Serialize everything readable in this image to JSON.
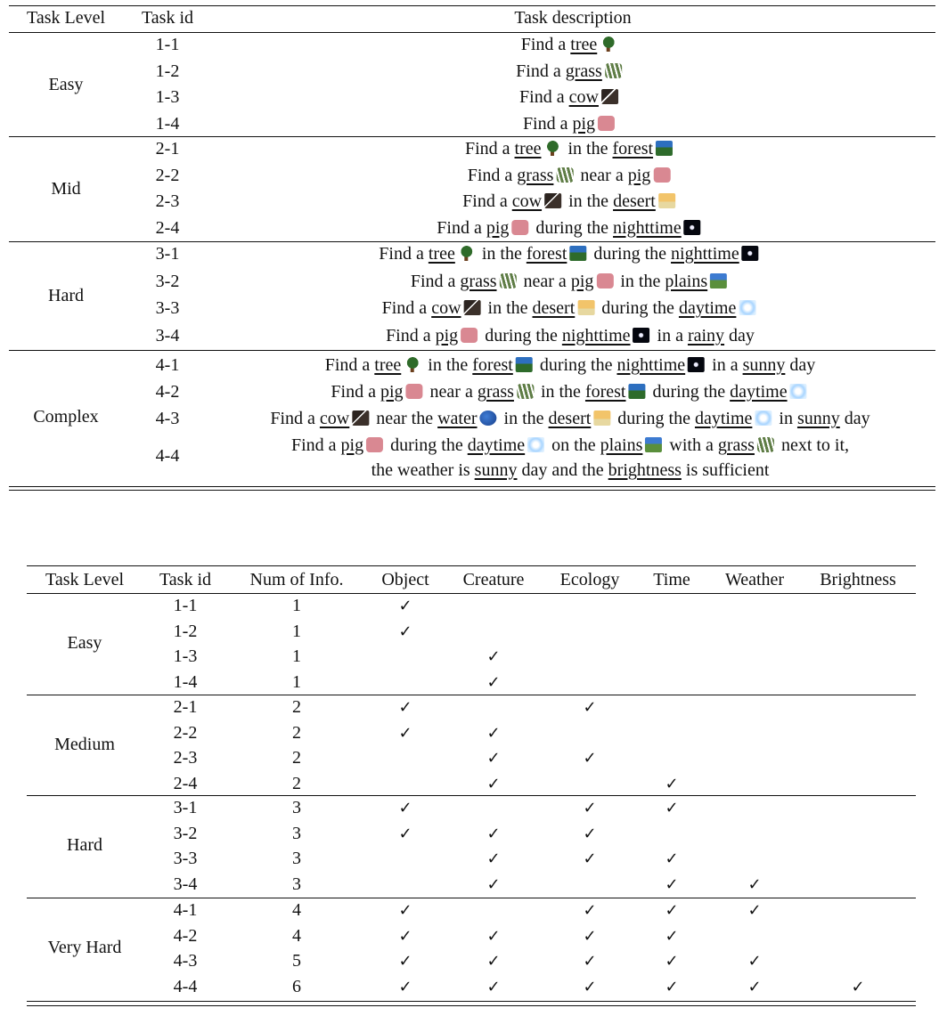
{
  "table1": {
    "headers": [
      "Task Level",
      "Task id",
      "Task description"
    ],
    "groups": [
      {
        "level": "Easy",
        "rows": [
          {
            "id": "1-1",
            "desc": [
              {
                "t": "Find a "
              },
              {
                "u": "tree"
              },
              {
                "icon": "tree-icon"
              }
            ]
          },
          {
            "id": "1-2",
            "desc": [
              {
                "t": "Find a "
              },
              {
                "u": "grass"
              },
              {
                "icon": "grass-icon"
              }
            ]
          },
          {
            "id": "1-3",
            "desc": [
              {
                "t": "Find a "
              },
              {
                "u": "cow"
              },
              {
                "icon": "cow-icon"
              }
            ]
          },
          {
            "id": "1-4",
            "desc": [
              {
                "t": "Find a "
              },
              {
                "u": "pig"
              },
              {
                "icon": "pig-icon"
              }
            ]
          }
        ]
      },
      {
        "level": "Mid",
        "rows": [
          {
            "id": "2-1",
            "desc": [
              {
                "t": "Find a "
              },
              {
                "u": "tree"
              },
              {
                "icon": "tree-icon"
              },
              {
                "t": " in the "
              },
              {
                "u": "forest"
              },
              {
                "icon": "forest-icon"
              }
            ]
          },
          {
            "id": "2-2",
            "desc": [
              {
                "t": "Find a "
              },
              {
                "u": "grass"
              },
              {
                "icon": "grass-icon"
              },
              {
                "t": " near a "
              },
              {
                "u": "pig"
              },
              {
                "icon": "pig-icon"
              }
            ]
          },
          {
            "id": "2-3",
            "desc": [
              {
                "t": "Find a "
              },
              {
                "u": "cow"
              },
              {
                "icon": "cow-icon"
              },
              {
                "t": " in the "
              },
              {
                "u": "desert"
              },
              {
                "icon": "desert-icon"
              }
            ]
          },
          {
            "id": "2-4",
            "desc": [
              {
                "t": "Find a "
              },
              {
                "u": "pig"
              },
              {
                "icon": "pig-icon"
              },
              {
                "t": " during the "
              },
              {
                "u": "nighttime"
              },
              {
                "icon": "night-icon"
              }
            ]
          }
        ]
      },
      {
        "level": "Hard",
        "rows": [
          {
            "id": "3-1",
            "desc": [
              {
                "t": "Find a "
              },
              {
                "u": "tree"
              },
              {
                "icon": "tree-icon"
              },
              {
                "t": " in the "
              },
              {
                "u": "forest"
              },
              {
                "icon": "forest-icon"
              },
              {
                "t": " during the "
              },
              {
                "u": "nighttime"
              },
              {
                "icon": "night-icon"
              }
            ]
          },
          {
            "id": "3-2",
            "desc": [
              {
                "t": "Find a "
              },
              {
                "u": "grass"
              },
              {
                "icon": "grass-icon"
              },
              {
                "t": " near a "
              },
              {
                "u": "pig"
              },
              {
                "icon": "pig-icon"
              },
              {
                "t": " in the "
              },
              {
                "u": "plains"
              },
              {
                "icon": "plains-icon"
              }
            ]
          },
          {
            "id": "3-3",
            "desc": [
              {
                "t": "Find a "
              },
              {
                "u": "cow"
              },
              {
                "icon": "cow-icon"
              },
              {
                "t": " in the "
              },
              {
                "u": "desert"
              },
              {
                "icon": "desert-icon"
              },
              {
                "t": " during the "
              },
              {
                "u": "daytime"
              },
              {
                "icon": "day-icon"
              }
            ]
          },
          {
            "id": "3-4",
            "desc": [
              {
                "t": "Find a "
              },
              {
                "u": "pig"
              },
              {
                "icon": "pig-icon"
              },
              {
                "t": " during the "
              },
              {
                "u": "nighttime"
              },
              {
                "icon": "night-icon"
              },
              {
                "t": " in a "
              },
              {
                "u": "rainy"
              },
              {
                "t": " day"
              }
            ]
          }
        ]
      },
      {
        "level": "Complex",
        "rows": [
          {
            "id": "4-1",
            "desc": [
              {
                "t": "Find a "
              },
              {
                "u": "tree"
              },
              {
                "icon": "tree-icon"
              },
              {
                "t": " in the "
              },
              {
                "u": "forest"
              },
              {
                "icon": "forest-icon"
              },
              {
                "t": " during the "
              },
              {
                "u": "nighttime"
              },
              {
                "icon": "night-icon"
              },
              {
                "t": " in a "
              },
              {
                "u": "sunny"
              },
              {
                "t": " day"
              }
            ]
          },
          {
            "id": "4-2",
            "desc": [
              {
                "t": "Find a "
              },
              {
                "u": "pig"
              },
              {
                "icon": "pig-icon"
              },
              {
                "t": " near a "
              },
              {
                "u": "grass"
              },
              {
                "icon": "grass-icon"
              },
              {
                "t": " in the "
              },
              {
                "u": "forest"
              },
              {
                "icon": "forest-icon"
              },
              {
                "t": " during the "
              },
              {
                "u": "daytime"
              },
              {
                "icon": "day-icon"
              }
            ]
          },
          {
            "id": "4-3",
            "desc": [
              {
                "t": "Find a "
              },
              {
                "u": "cow"
              },
              {
                "icon": "cow-icon"
              },
              {
                "t": " near the "
              },
              {
                "u": "water"
              },
              {
                "icon": "water-icon"
              },
              {
                "t": " in the "
              },
              {
                "u": "desert"
              },
              {
                "icon": "desert-icon"
              },
              {
                "t": " during the "
              },
              {
                "u": "daytime"
              },
              {
                "icon": "day-icon"
              },
              {
                "t": " in "
              },
              {
                "u": "sunny"
              },
              {
                "t": " day"
              }
            ]
          },
          {
            "id": "4-4",
            "desc": [
              {
                "t": "Find a "
              },
              {
                "u": "pig"
              },
              {
                "icon": "pig-icon"
              },
              {
                "t": " during the "
              },
              {
                "u": "daytime"
              },
              {
                "icon": "day-icon"
              },
              {
                "t": " on the "
              },
              {
                "u": "plains"
              },
              {
                "icon": "plains-icon"
              },
              {
                "t": " with a "
              },
              {
                "u": "grass"
              },
              {
                "icon": "grass-icon"
              },
              {
                "t": " next to it,"
              }
            ],
            "desc2": [
              {
                "t": "the weather is "
              },
              {
                "u": "sunny"
              },
              {
                "t": " day and the "
              },
              {
                "u": "brightness"
              },
              {
                "t": " is sufficient"
              }
            ]
          }
        ]
      }
    ]
  },
  "table2": {
    "headers": [
      "Task Level",
      "Task id",
      "Num of Info.",
      "Object",
      "Creature",
      "Ecology",
      "Time",
      "Weather",
      "Brightness"
    ],
    "check_mark": "✓",
    "groups": [
      {
        "level": "Easy",
        "rows": [
          {
            "id": "1-1",
            "num": "1",
            "checks": [
              1,
              0,
              0,
              0,
              0,
              0
            ]
          },
          {
            "id": "1-2",
            "num": "1",
            "checks": [
              1,
              0,
              0,
              0,
              0,
              0
            ]
          },
          {
            "id": "1-3",
            "num": "1",
            "checks": [
              0,
              1,
              0,
              0,
              0,
              0
            ]
          },
          {
            "id": "1-4",
            "num": "1",
            "checks": [
              0,
              1,
              0,
              0,
              0,
              0
            ]
          }
        ]
      },
      {
        "level": "Medium",
        "rows": [
          {
            "id": "2-1",
            "num": "2",
            "checks": [
              1,
              0,
              1,
              0,
              0,
              0
            ]
          },
          {
            "id": "2-2",
            "num": "2",
            "checks": [
              1,
              1,
              0,
              0,
              0,
              0
            ]
          },
          {
            "id": "2-3",
            "num": "2",
            "checks": [
              0,
              1,
              1,
              0,
              0,
              0
            ]
          },
          {
            "id": "2-4",
            "num": "2",
            "checks": [
              0,
              1,
              0,
              1,
              0,
              0
            ]
          }
        ]
      },
      {
        "level": "Hard",
        "rows": [
          {
            "id": "3-1",
            "num": "3",
            "checks": [
              1,
              0,
              1,
              1,
              0,
              0
            ]
          },
          {
            "id": "3-2",
            "num": "3",
            "checks": [
              1,
              1,
              1,
              0,
              0,
              0
            ]
          },
          {
            "id": "3-3",
            "num": "3",
            "checks": [
              0,
              1,
              1,
              1,
              0,
              0
            ]
          },
          {
            "id": "3-4",
            "num": "3",
            "checks": [
              0,
              1,
              0,
              1,
              1,
              0
            ]
          }
        ]
      },
      {
        "level": "Very Hard",
        "rows": [
          {
            "id": "4-1",
            "num": "4",
            "checks": [
              1,
              0,
              1,
              1,
              1,
              0
            ]
          },
          {
            "id": "4-2",
            "num": "4",
            "checks": [
              1,
              1,
              1,
              1,
              0,
              0
            ]
          },
          {
            "id": "4-3",
            "num": "5",
            "checks": [
              1,
              1,
              1,
              1,
              1,
              0
            ]
          },
          {
            "id": "4-4",
            "num": "6",
            "checks": [
              1,
              1,
              1,
              1,
              1,
              1
            ]
          }
        ]
      }
    ]
  }
}
